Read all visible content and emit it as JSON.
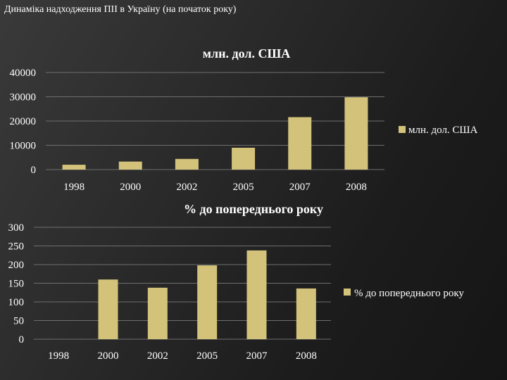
{
  "slide": {
    "title": "Динаміка надходження ПІІ в Україну (на початок року)"
  },
  "colors": {
    "bar": "#d3c27a",
    "grid": "#6e6e6e",
    "text": "#ffffff"
  },
  "chart_data": [
    {
      "type": "bar",
      "title": "млн. дол. США",
      "categories": [
        "1998",
        "2000",
        "2002",
        "2005",
        "2007",
        "2008"
      ],
      "series": [
        {
          "name": "млн. дол. США",
          "values": [
            2000,
            3300,
            4400,
            9000,
            21600,
            29800
          ]
        }
      ],
      "yticks": [
        "0",
        "10000",
        "20000",
        "30000",
        "40000"
      ],
      "ylim": [
        0,
        40000
      ],
      "grid": true,
      "legend": "right"
    },
    {
      "type": "bar",
      "title": "% до попереднього року",
      "categories": [
        "1998",
        "2000",
        "2002",
        "2005",
        "2007",
        "2008"
      ],
      "series": [
        {
          "name": "% до попереднього року",
          "values": [
            0,
            160,
            138,
            198,
            238,
            136
          ]
        }
      ],
      "yticks": [
        "0",
        "50",
        "100",
        "150",
        "200",
        "250",
        "300"
      ],
      "ylim": [
        0,
        300
      ],
      "grid": true,
      "legend": "right"
    }
  ]
}
